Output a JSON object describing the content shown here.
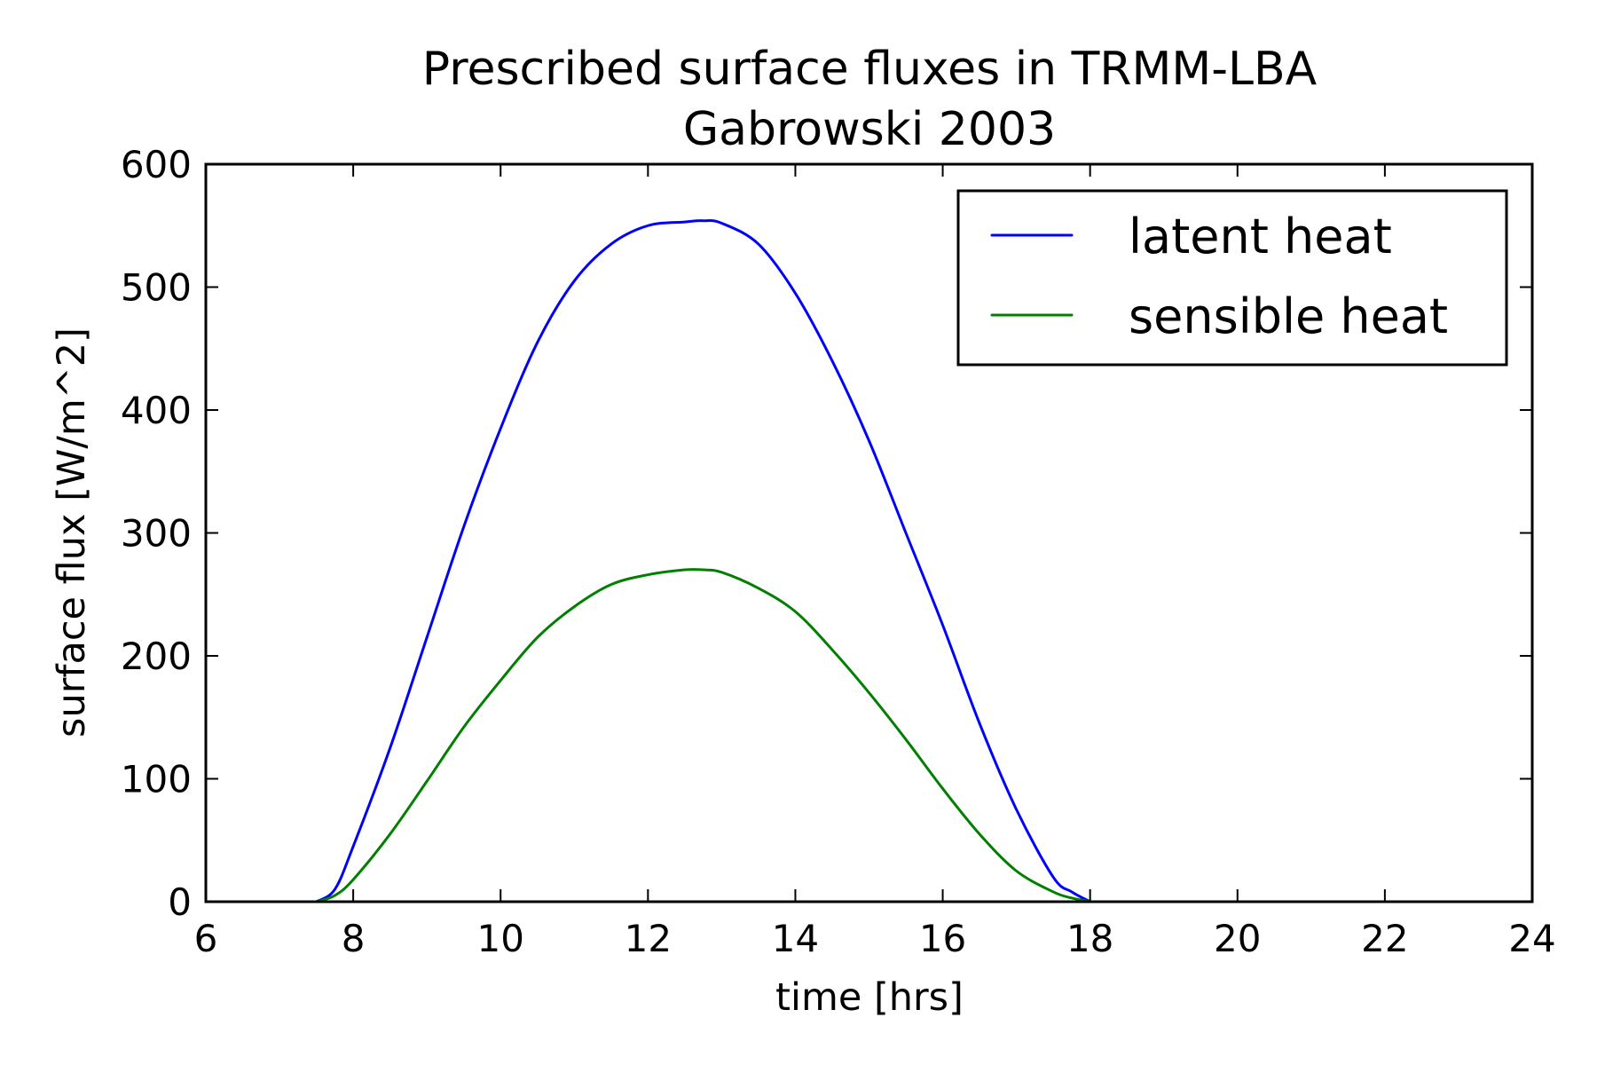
{
  "chart_data": {
    "type": "line",
    "title": "Prescribed surface fluxes in TRMM-LBA",
    "subtitle": "Gabrowski 2003",
    "xlabel": "time [hrs]",
    "ylabel": "surface flux [W/m^2]",
    "xlim": [
      6,
      24
    ],
    "ylim": [
      0,
      600
    ],
    "xticks": [
      6,
      8,
      10,
      12,
      14,
      16,
      18,
      20,
      22,
      24
    ],
    "yticks": [
      0,
      100,
      200,
      300,
      400,
      500,
      600
    ],
    "grid": false,
    "legend_position": "top-right",
    "x": [
      7.5,
      7.75,
      8.0,
      8.5,
      9.0,
      9.5,
      10.0,
      10.5,
      11.0,
      11.5,
      12.0,
      12.5,
      12.75,
      13.0,
      13.5,
      14.0,
      14.5,
      15.0,
      15.5,
      16.0,
      16.5,
      17.0,
      17.5,
      17.75,
      18.0
    ],
    "series": [
      {
        "name": "latent heat",
        "color": "#0000ff",
        "values": [
          0,
          10,
          45,
          125,
          215,
          305,
          385,
          455,
          505,
          535,
          550,
          553,
          554,
          552,
          535,
          495,
          440,
          375,
          300,
          225,
          145,
          75,
          20,
          8,
          0
        ]
      },
      {
        "name": "sensible heat",
        "color": "#007f00",
        "values": [
          0,
          5,
          18,
          55,
          98,
          142,
          180,
          215,
          240,
          258,
          266,
          270,
          270,
          268,
          255,
          236,
          205,
          170,
          132,
          92,
          55,
          25,
          8,
          3,
          0
        ]
      }
    ]
  }
}
